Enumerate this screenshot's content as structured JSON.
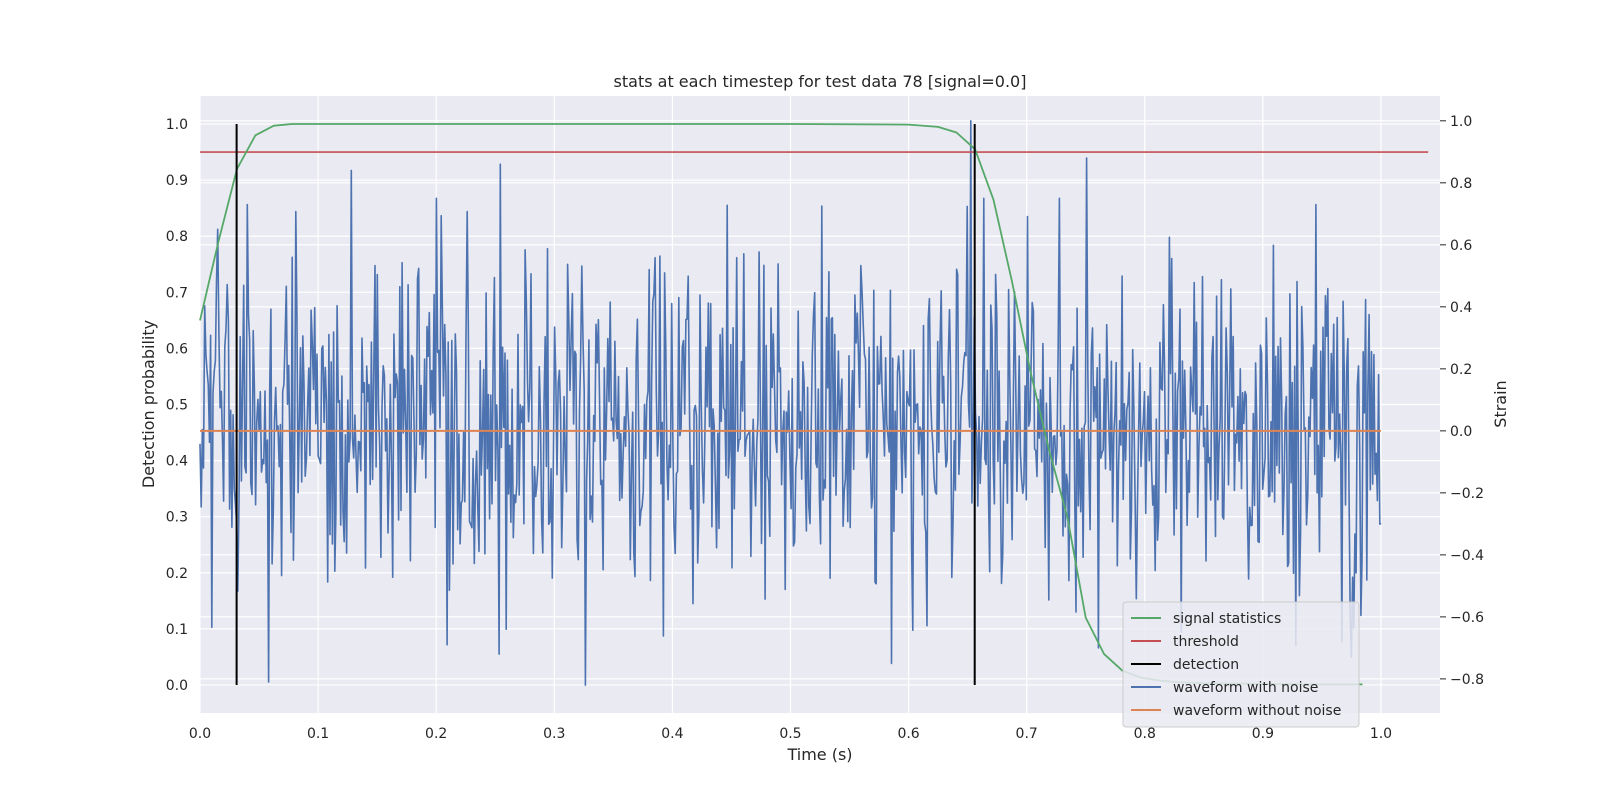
{
  "chart_data": {
    "type": "line",
    "title": "stats at each timestep for test data 78 [signal=0.0]",
    "xlabel": "Time (s)",
    "ylabel": "Detection probability",
    "y2label": "Strain",
    "xlim": [
      0.0,
      1.05
    ],
    "ylim": [
      -0.05,
      1.05
    ],
    "y2lim": [
      -0.91,
      1.08
    ],
    "xticks": [
      0.0,
      0.1,
      0.2,
      0.3,
      0.4,
      0.5,
      0.6,
      0.7,
      0.8,
      0.9,
      1.0
    ],
    "xtick_labels": [
      "0.0",
      "0.1",
      "0.2",
      "0.3",
      "0.4",
      "0.5",
      "0.6",
      "0.7",
      "0.8",
      "0.9",
      "1.0"
    ],
    "yticks": [
      0.0,
      0.1,
      0.2,
      0.3,
      0.4,
      0.5,
      0.6,
      0.7,
      0.8,
      0.9,
      1.0
    ],
    "ytick_labels": [
      "0.0",
      "0.1",
      "0.2",
      "0.3",
      "0.4",
      "0.5",
      "0.6",
      "0.7",
      "0.8",
      "0.9",
      "1.0"
    ],
    "y2ticks": [
      -0.8,
      -0.6,
      -0.4,
      -0.2,
      0.0,
      0.2,
      0.4,
      0.6,
      0.8,
      1.0
    ],
    "y2tick_labels": [
      "−0.8",
      "−0.6",
      "−0.4",
      "−0.2",
      "0.0",
      "0.2",
      "0.4",
      "0.6",
      "0.8",
      "1.0"
    ],
    "grid": true,
    "legend_position": "lower-right",
    "series": [
      {
        "name": "signal statistics",
        "axis": "left",
        "color": "#55a868",
        "x": [
          0.0,
          0.0156,
          0.0313,
          0.0469,
          0.0625,
          0.0781,
          0.1,
          0.2,
          0.3,
          0.4,
          0.5,
          0.6,
          0.625,
          0.6406,
          0.6563,
          0.6719,
          0.6875,
          0.7031,
          0.7188,
          0.7344,
          0.75,
          0.7656,
          0.7813,
          0.7969,
          0.8125,
          0.8281,
          0.85,
          0.9,
          0.95,
          0.9844
        ],
        "y": [
          0.65,
          0.79,
          0.92,
          0.98,
          0.997,
          1.0,
          1.0,
          1.0,
          1.0,
          1.0,
          1.0,
          0.999,
          0.995,
          0.985,
          0.955,
          0.865,
          0.72,
          0.56,
          0.42,
          0.3,
          0.12,
          0.055,
          0.025,
          0.013,
          0.008,
          0.005,
          0.003,
          0.002,
          0.001,
          0.001
        ]
      },
      {
        "name": "threshold",
        "axis": "left",
        "color": "#c44e52",
        "x": [
          0.0,
          1.04
        ],
        "y": [
          0.95,
          0.95
        ]
      },
      {
        "name": "detection",
        "axis": "left",
        "color": "#000000",
        "type": "vline",
        "x": [
          0.031,
          0.656
        ],
        "y": [
          0.0,
          1.0
        ]
      },
      {
        "name": "waveform with noise",
        "axis": "right",
        "color": "#4c72b0",
        "type": "noise",
        "n_points": 1000,
        "x_range": [
          0.0,
          1.0
        ],
        "amplitude": 0.27,
        "peaks": [
          {
            "x": 0.015,
            "y": 0.65
          },
          {
            "x": 0.04,
            "y": 0.73
          },
          {
            "x": 0.058,
            "y": -0.81
          },
          {
            "x": 0.128,
            "y": 0.84
          },
          {
            "x": 0.253,
            "y": -0.72
          },
          {
            "x": 0.254,
            "y": 0.86
          },
          {
            "x": 0.326,
            "y": -0.82
          },
          {
            "x": 0.586,
            "y": -0.75
          },
          {
            "x": 0.653,
            "y": 1.0
          },
          {
            "x": 0.751,
            "y": 0.88
          },
          {
            "x": 0.945,
            "y": 0.73
          },
          {
            "x": 0.975,
            "y": -0.73
          }
        ]
      },
      {
        "name": "waveform without noise",
        "axis": "right",
        "color": "#dd8452",
        "x": [
          0.0,
          1.0
        ],
        "y": [
          0.0,
          0.0
        ]
      }
    ]
  }
}
